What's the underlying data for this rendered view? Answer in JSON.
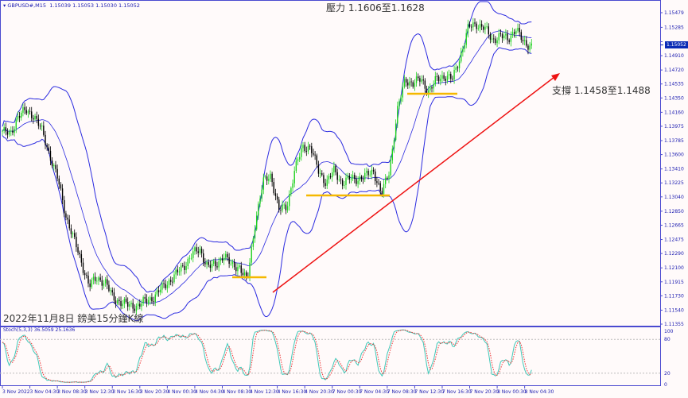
{
  "header": {
    "symbol": "GBPUSD#,M15",
    "ohlc": "1.15039 1.15053 1.15030 1.15052"
  },
  "annotations": {
    "resistance": "壓力 1.1606至1.1628",
    "support": "支撐 1.1458至1.1488",
    "caption": "2022年11月8日 鎊美15分鐘K線"
  },
  "current_price": "1.15052",
  "stoch": {
    "label": "Stoch(5,3,3) 36.5059 25.1636",
    "levels": [
      "100",
      "80",
      "20",
      "0"
    ]
  },
  "colors": {
    "bull": "#1fd11f",
    "bear": "#000000",
    "bands": "#2a2ae0",
    "trend": "#ee1111",
    "support_lines": "#f5b800",
    "stoch_main": "#40c8b8",
    "stoch_signal": "#ee3333"
  },
  "chart_data": {
    "type": "candlestick",
    "timeframe": "M15",
    "indicators": [
      "Bollinger Bands",
      "Stochastic(5,3,3)"
    ],
    "y_ticks": [
      "1.15479",
      "1.15285",
      "1.15095",
      "1.14910",
      "1.14720",
      "1.14535",
      "1.14350",
      "1.14160",
      "1.13975",
      "1.13785",
      "1.13600",
      "1.13410",
      "1.13225",
      "1.13040",
      "1.12850",
      "1.12665",
      "1.12475",
      "1.12290",
      "1.12100",
      "1.11915",
      "1.11730",
      "1.11540",
      "1.11355"
    ],
    "ylim": [
      1.11334,
      1.15626
    ],
    "x_ticks": [
      "3 Nov 2022",
      "3 Nov 04:30",
      "3 Nov 08:30",
      "3 Nov 12:30",
      "3 Nov 16:30",
      "3 Nov 20:30",
      "4 Nov 00:30",
      "4 Nov 04:30",
      "4 Nov 08:30",
      "4 Nov 12:30",
      "4 Nov 16:30",
      "4 Nov 20:30",
      "7 Nov 00:30",
      "7 Nov 04:30",
      "7 Nov 08:30",
      "7 Nov 12:30",
      "7 Nov 16:30",
      "7 Nov 20:30",
      "8 Nov 00:30",
      "8 Nov 04:30"
    ],
    "approx_closes": [
      1.13912,
      1.13859,
      1.14122,
      1.14175,
      1.14122,
      1.13912,
      1.13596,
      1.1328,
      1.12807,
      1.12491,
      1.12176,
      1.1186,
      1.11965,
      1.11913,
      1.11702,
      1.1165,
      1.11597,
      1.11597,
      1.1165,
      1.11702,
      1.11808,
      1.11913,
      1.12018,
      1.12123,
      1.12281,
      1.12334,
      1.12123,
      1.12123,
      1.12281,
      1.12123,
      1.12123,
      1.11913,
      1.12702,
      1.13228,
      1.13333,
      1.1286,
      1.12912,
      1.13386,
      1.13701,
      1.13701,
      1.13386,
      1.13228,
      1.13386,
      1.13228,
      1.1328,
      1.1328,
      1.13312,
      1.13386,
      1.1307,
      1.13386,
      1.14175,
      1.14595,
      1.14543,
      1.14595,
      1.14438,
      1.14595,
      1.14648,
      1.14595,
      1.14911,
      1.15279,
      1.15332,
      1.15279,
      1.15121,
      1.15174,
      1.15121,
      1.15279,
      1.15069,
      1.15052
    ]
  }
}
